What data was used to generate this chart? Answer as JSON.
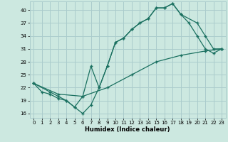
{
  "xlabel": "Humidex (Indice chaleur)",
  "bg_color": "#cce8e0",
  "grid_color": "#aacccc",
  "line_color": "#1a7060",
  "ylim": [
    15,
    42
  ],
  "xlim": [
    -0.5,
    23.5
  ],
  "yticks": [
    16,
    19,
    22,
    25,
    28,
    31,
    34,
    37,
    40
  ],
  "xticks": [
    0,
    1,
    2,
    3,
    4,
    5,
    6,
    7,
    8,
    9,
    10,
    11,
    12,
    13,
    14,
    15,
    16,
    17,
    18,
    19,
    20,
    21,
    22,
    23
  ],
  "line1_x": [
    0,
    1,
    2,
    3,
    4,
    5,
    6,
    7,
    8,
    9,
    10,
    11,
    12,
    13,
    14,
    15,
    16,
    17,
    18,
    19,
    20,
    21,
    22,
    23
  ],
  "line1_y": [
    23,
    21,
    20.5,
    19.5,
    19,
    17.5,
    16,
    18,
    22,
    27,
    32.5,
    33.5,
    35.5,
    37,
    38,
    40.5,
    40.5,
    41.5,
    39,
    37,
    34,
    31,
    30,
    31
  ],
  "line2_x": [
    0,
    2,
    3,
    4,
    5,
    6,
    7,
    8,
    9,
    10,
    11,
    12,
    13,
    14,
    15,
    16,
    17,
    18,
    20,
    21,
    22,
    23
  ],
  "line2_y": [
    23,
    21,
    20,
    19,
    17.5,
    20,
    27,
    22,
    27,
    32.5,
    33.5,
    35.5,
    37,
    38,
    40.5,
    40.5,
    41.5,
    39,
    37,
    34,
    31,
    31
  ],
  "line3_x": [
    0,
    3,
    6,
    9,
    12,
    15,
    18,
    21,
    23
  ],
  "line3_y": [
    23,
    20.5,
    20,
    22,
    25,
    28,
    29.5,
    30.5,
    31
  ]
}
